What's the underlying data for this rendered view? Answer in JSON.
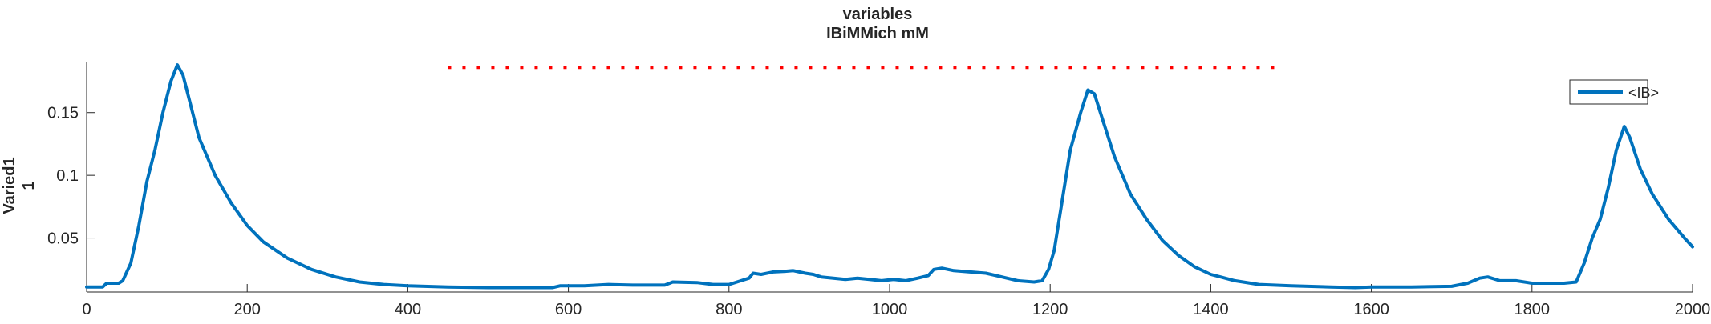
{
  "chart_data": {
    "type": "line",
    "title": [
      "variables",
      "IBiMMich mM"
    ],
    "ylabel": [
      "Varied1",
      "1"
    ],
    "xlabel": "",
    "xlim": [
      0,
      2000
    ],
    "ylim": [
      0.007,
      0.19
    ],
    "xticks": [
      0,
      200,
      400,
      600,
      800,
      1000,
      1200,
      1400,
      1600,
      1800,
      2000
    ],
    "yticks": [
      0.05,
      0.1,
      0.15
    ],
    "ytick_labels": [
      "0.05",
      "0.1",
      "0.15"
    ],
    "grid": false,
    "legend": {
      "position": "top-right",
      "entries": [
        "<IB>"
      ]
    },
    "series": [
      {
        "name": "<IB>",
        "color": "#0072BD",
        "points": [
          [
            0,
            0.011
          ],
          [
            20,
            0.011
          ],
          [
            25,
            0.014
          ],
          [
            40,
            0.014
          ],
          [
            45,
            0.016
          ],
          [
            55,
            0.03
          ],
          [
            65,
            0.06
          ],
          [
            75,
            0.095
          ],
          [
            85,
            0.12
          ],
          [
            95,
            0.15
          ],
          [
            105,
            0.175
          ],
          [
            113,
            0.188
          ],
          [
            120,
            0.18
          ],
          [
            130,
            0.155
          ],
          [
            140,
            0.13
          ],
          [
            160,
            0.1
          ],
          [
            180,
            0.078
          ],
          [
            200,
            0.06
          ],
          [
            220,
            0.047
          ],
          [
            250,
            0.034
          ],
          [
            280,
            0.025
          ],
          [
            310,
            0.019
          ],
          [
            340,
            0.015
          ],
          [
            370,
            0.013
          ],
          [
            400,
            0.012
          ],
          [
            450,
            0.011
          ],
          [
            500,
            0.0105
          ],
          [
            550,
            0.0105
          ],
          [
            580,
            0.0105
          ],
          [
            590,
            0.012
          ],
          [
            620,
            0.012
          ],
          [
            650,
            0.013
          ],
          [
            680,
            0.0125
          ],
          [
            720,
            0.0125
          ],
          [
            730,
            0.015
          ],
          [
            760,
            0.0145
          ],
          [
            780,
            0.013
          ],
          [
            800,
            0.013
          ],
          [
            815,
            0.016
          ],
          [
            825,
            0.018
          ],
          [
            830,
            0.022
          ],
          [
            840,
            0.021
          ],
          [
            855,
            0.023
          ],
          [
            870,
            0.0235
          ],
          [
            880,
            0.024
          ],
          [
            895,
            0.022
          ],
          [
            905,
            0.021
          ],
          [
            915,
            0.019
          ],
          [
            930,
            0.018
          ],
          [
            945,
            0.017
          ],
          [
            960,
            0.018
          ],
          [
            975,
            0.017
          ],
          [
            990,
            0.016
          ],
          [
            1005,
            0.017
          ],
          [
            1020,
            0.016
          ],
          [
            1035,
            0.018
          ],
          [
            1048,
            0.02
          ],
          [
            1055,
            0.025
          ],
          [
            1065,
            0.026
          ],
          [
            1080,
            0.024
          ],
          [
            1100,
            0.023
          ],
          [
            1120,
            0.022
          ],
          [
            1140,
            0.019
          ],
          [
            1160,
            0.016
          ],
          [
            1180,
            0.015
          ],
          [
            1190,
            0.016
          ],
          [
            1198,
            0.025
          ],
          [
            1205,
            0.04
          ],
          [
            1215,
            0.08
          ],
          [
            1225,
            0.12
          ],
          [
            1238,
            0.15
          ],
          [
            1247,
            0.168
          ],
          [
            1255,
            0.165
          ],
          [
            1265,
            0.145
          ],
          [
            1280,
            0.115
          ],
          [
            1300,
            0.085
          ],
          [
            1320,
            0.065
          ],
          [
            1340,
            0.048
          ],
          [
            1360,
            0.036
          ],
          [
            1380,
            0.027
          ],
          [
            1400,
            0.021
          ],
          [
            1430,
            0.016
          ],
          [
            1460,
            0.013
          ],
          [
            1500,
            0.012
          ],
          [
            1550,
            0.011
          ],
          [
            1580,
            0.0105
          ],
          [
            1600,
            0.011
          ],
          [
            1650,
            0.011
          ],
          [
            1700,
            0.0115
          ],
          [
            1720,
            0.014
          ],
          [
            1735,
            0.018
          ],
          [
            1745,
            0.019
          ],
          [
            1760,
            0.016
          ],
          [
            1780,
            0.016
          ],
          [
            1800,
            0.014
          ],
          [
            1840,
            0.014
          ],
          [
            1855,
            0.015
          ],
          [
            1865,
            0.03
          ],
          [
            1875,
            0.05
          ],
          [
            1885,
            0.065
          ],
          [
            1895,
            0.09
          ],
          [
            1905,
            0.12
          ],
          [
            1915,
            0.139
          ],
          [
            1922,
            0.13
          ],
          [
            1935,
            0.105
          ],
          [
            1950,
            0.085
          ],
          [
            1970,
            0.065
          ],
          [
            1990,
            0.05
          ],
          [
            2000,
            0.043
          ]
        ]
      },
      {
        "type": "dotted-reference",
        "color": "#FF0000",
        "y": 0.186,
        "x": [
          450,
          1480
        ]
      }
    ]
  }
}
